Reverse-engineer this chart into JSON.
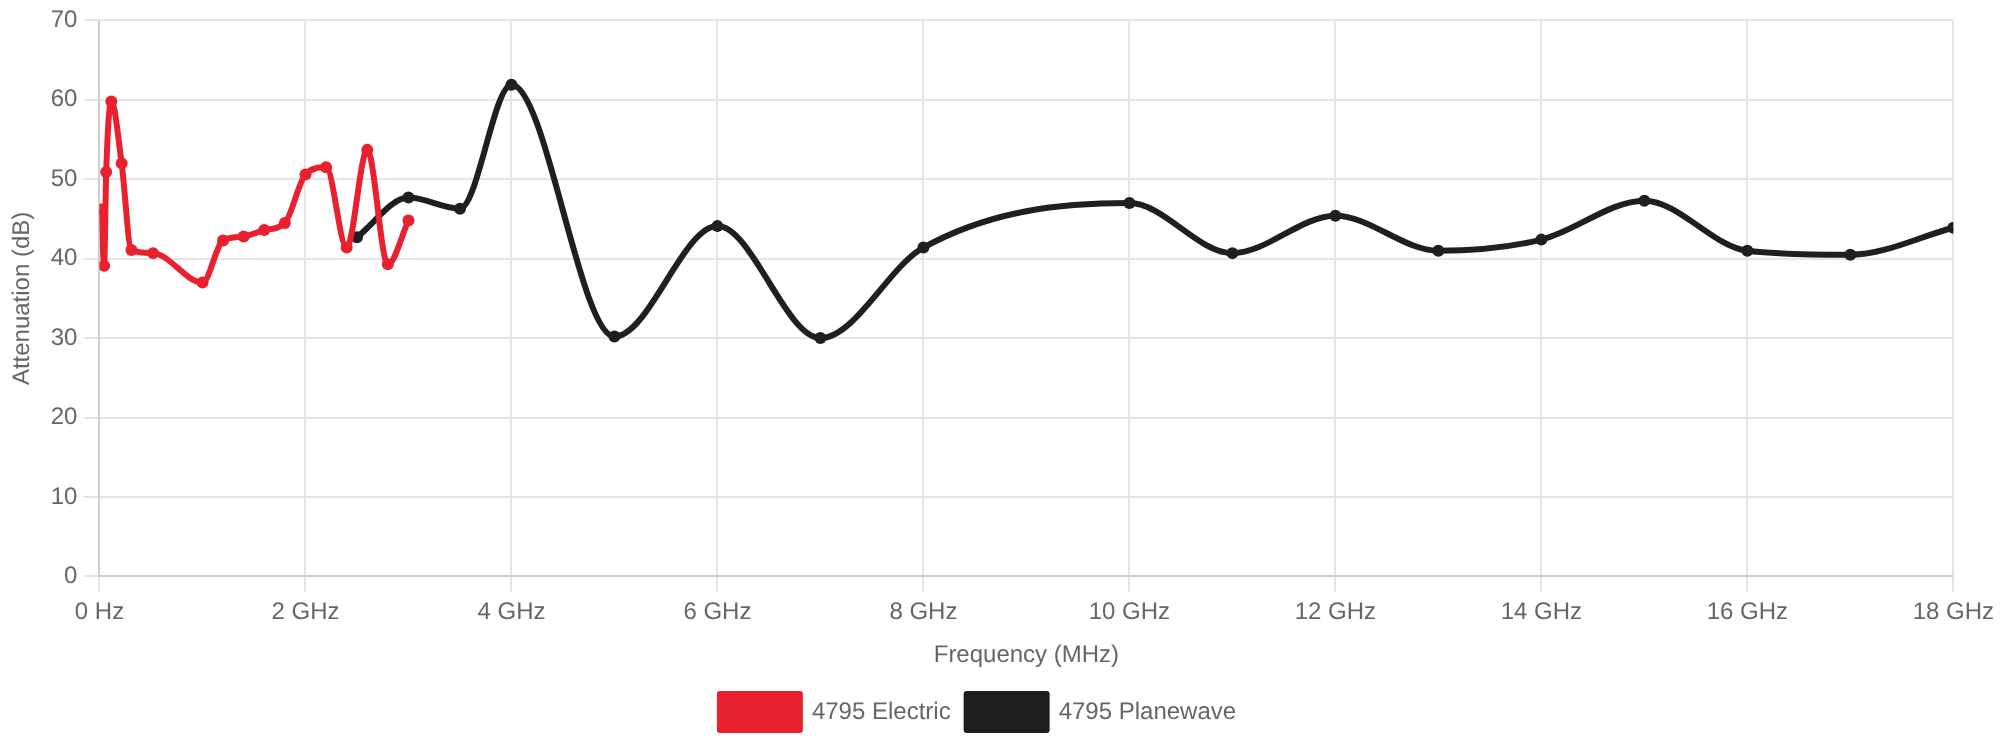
{
  "chart_data": {
    "type": "line",
    "xlabel": "Frequency (MHz)",
    "ylabel": "Attenuation (dB)",
    "xlim": [
      0,
      18
    ],
    "xticks": [
      {
        "value": 0,
        "label": "0 Hz"
      },
      {
        "value": 2,
        "label": "2 GHz"
      },
      {
        "value": 4,
        "label": "4 GHz"
      },
      {
        "value": 6,
        "label": "6 GHz"
      },
      {
        "value": 8,
        "label": "8 GHz"
      },
      {
        "value": 10,
        "label": "10 GHz"
      },
      {
        "value": 12,
        "label": "12 GHz"
      },
      {
        "value": 14,
        "label": "14 GHz"
      },
      {
        "value": 16,
        "label": "16 GHz"
      },
      {
        "value": 18,
        "label": "18 GHz"
      }
    ],
    "ylim": [
      0,
      70
    ],
    "yticks": [
      0,
      10,
      20,
      30,
      40,
      50,
      60,
      70
    ],
    "grid": true,
    "legend": "bottom",
    "marker": "circle",
    "line_style": "solid",
    "series": [
      {
        "name": "4795 Electric",
        "color": "#e8212f",
        "x": [
          0.02,
          0.045,
          0.065,
          0.115,
          0.215,
          0.31,
          0.52,
          1.0,
          1.2,
          1.4,
          1.6,
          1.8,
          2.0,
          2.2,
          2.4,
          2.6,
          2.8,
          3.0
        ],
        "values": [
          46.2,
          39.1,
          50.9,
          59.8,
          52,
          41.1,
          40.7,
          37.0,
          42.3,
          42.8,
          43.6,
          44.5,
          50.6,
          51.5,
          41.4,
          53.7,
          39.3,
          44.8
        ]
      },
      {
        "name": "4795 Planewave",
        "color": "#1f1f1f",
        "x": [
          2.5,
          3,
          3.5,
          4,
          5,
          6,
          7,
          8,
          10,
          11,
          12,
          13,
          14,
          15,
          16,
          17,
          18
        ],
        "values": [
          42.7,
          47.7,
          46.3,
          61.9,
          30.2,
          44.1,
          30.0,
          41.4,
          47.0,
          40.7,
          45.4,
          41.0,
          42.4,
          47.3,
          41.0,
          40.5,
          43.9
        ]
      }
    ]
  }
}
